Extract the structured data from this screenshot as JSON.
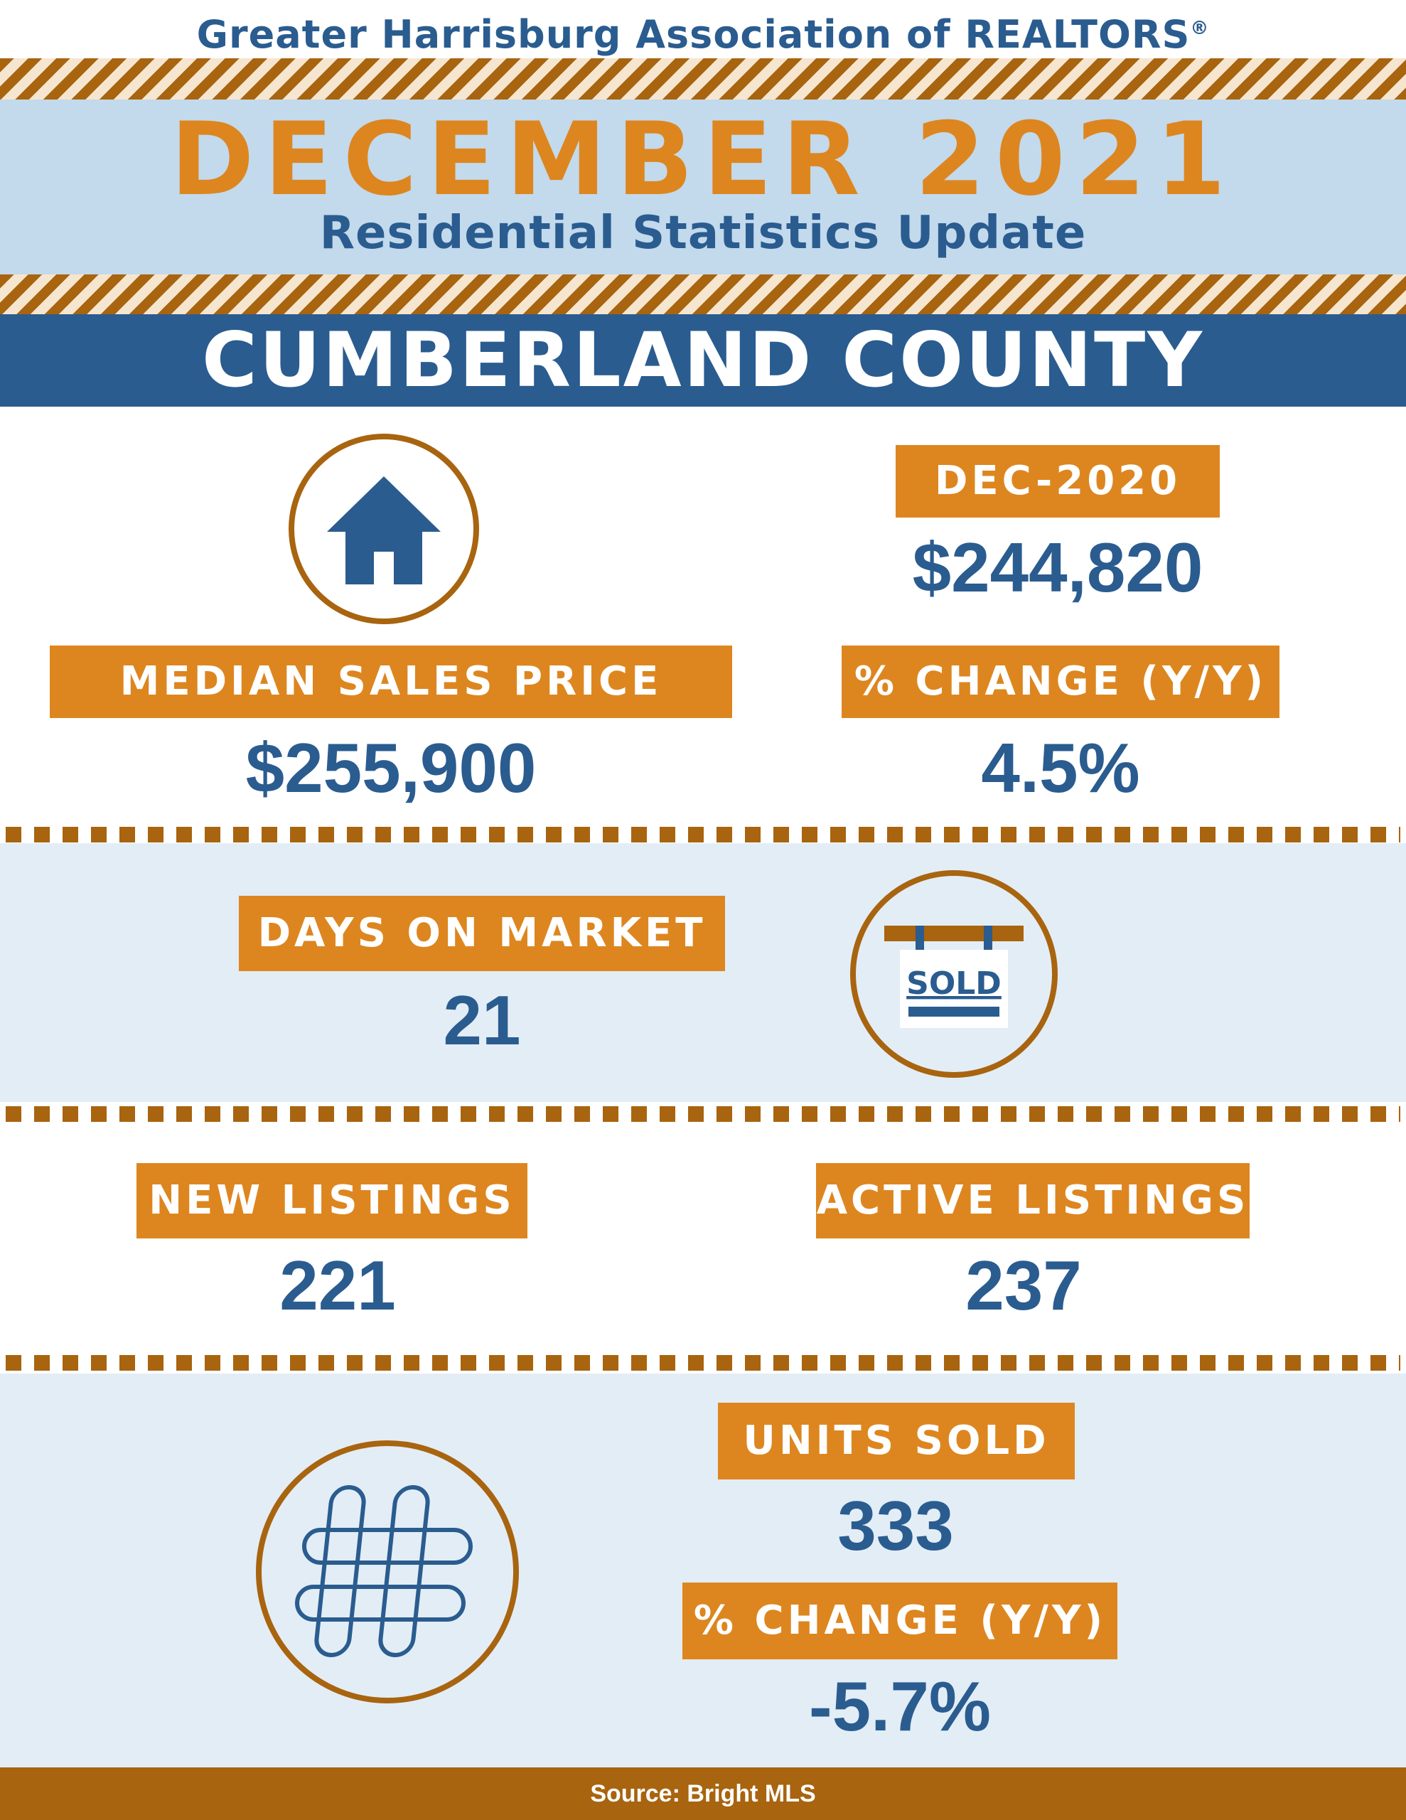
{
  "header": {
    "organization": "Greater Harrisburg Association of REALTORS",
    "registered_mark": "®",
    "month_year": "DECEMBER 2021",
    "subtitle": "Residential Statistics Update",
    "county": "CUMBERLAND COUNTY"
  },
  "median_price": {
    "label": "MEDIAN SALES PRICE",
    "value": "$255,900",
    "icon": "house-icon"
  },
  "prior_year": {
    "label": "DEC-2020",
    "value": "$244,820"
  },
  "price_change": {
    "label": "% CHANGE (Y/Y)",
    "value": "4.5%"
  },
  "days_on_market": {
    "label": "DAYS ON MARKET",
    "value": "21",
    "icon": "sold-sign-icon",
    "sign_text": "SOLD"
  },
  "new_listings": {
    "label": "NEW LISTINGS",
    "value": "221"
  },
  "active_listings": {
    "label": "ACTIVE LISTINGS",
    "value": "237"
  },
  "units_sold": {
    "label": "UNITS SOLD",
    "value": "333",
    "icon": "hashtag-icon"
  },
  "units_change": {
    "label": "% CHANGE (Y/Y)",
    "value": "-5.7%"
  },
  "footer": {
    "source": "Source: Bright MLS"
  },
  "colors": {
    "navy": "#2a5c8f",
    "orange": "#dd861f",
    "brown": "#a8640f",
    "light_blue": "#c3d9ec",
    "pale_blue": "#e3edf6"
  }
}
